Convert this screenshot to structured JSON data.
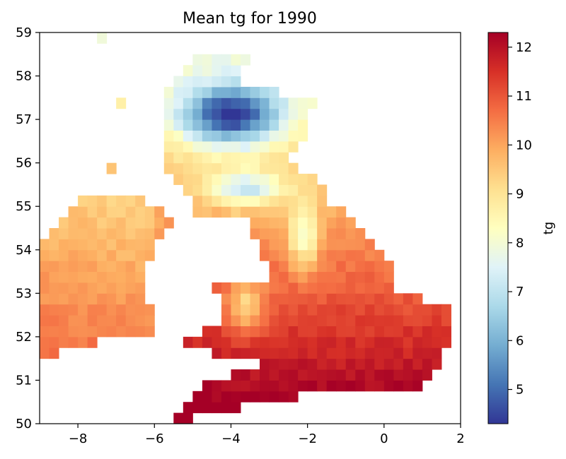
{
  "chart_data": {
    "type": "heatmap",
    "title": "Mean tg for 1990",
    "xlabel": "",
    "ylabel": "",
    "xlim": [
      -9,
      2
    ],
    "ylim": [
      50,
      59
    ],
    "xticks": [
      -8,
      -6,
      -4,
      -2,
      0,
      2
    ],
    "xtick_labels": [
      "−8",
      "−6",
      "−4",
      "−2",
      "0",
      "2"
    ],
    "yticks": [
      50,
      51,
      52,
      53,
      54,
      55,
      56,
      57,
      58,
      59
    ],
    "ytick_labels": [
      "50",
      "51",
      "52",
      "53",
      "54",
      "55",
      "56",
      "57",
      "58",
      "59"
    ],
    "grid": false,
    "colormap": "RdYlBu_r",
    "colorbar": {
      "label": "tg",
      "range": [
        4.3,
        12.3
      ],
      "ticks": [
        5,
        6,
        7,
        8,
        9,
        10,
        11,
        12
      ],
      "tick_labels": [
        "5",
        "6",
        "7",
        "8",
        "9",
        "10",
        "11",
        "12"
      ]
    },
    "cell_size_deg": 0.25,
    "value_ranges": {
      "northern_scotland_highlands": [
        5.5,
        7.5
      ],
      "scottish_lowlands_and_islands": [
        8.0,
        9.5
      ],
      "northern_england_pennines_wales": [
        8.5,
        10.0
      ],
      "ireland": [
        9.5,
        11.0
      ],
      "southern_england_coasts": [
        10.5,
        11.8
      ]
    }
  }
}
